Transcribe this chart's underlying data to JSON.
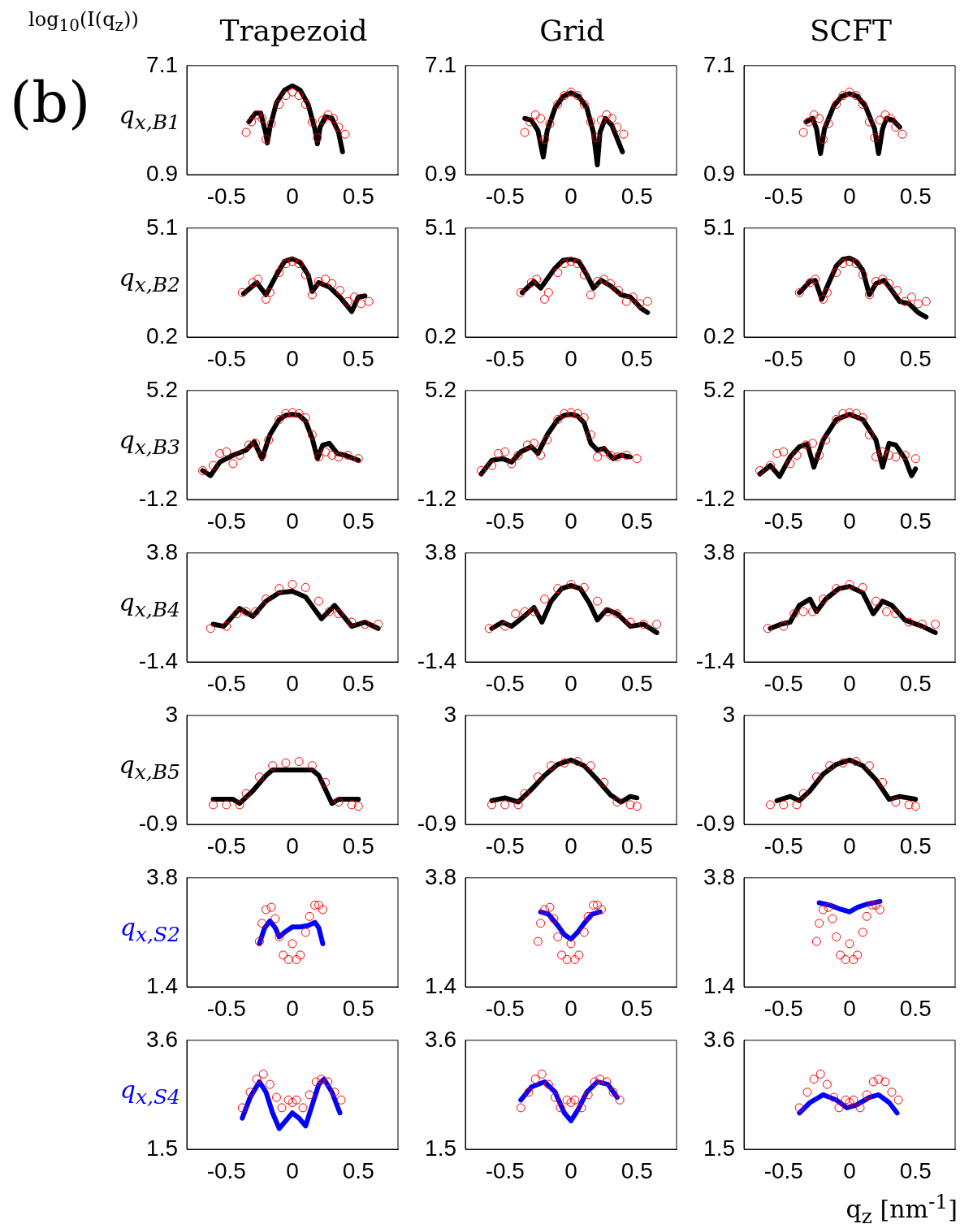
{
  "chart_data": [
    {
      "type": "scatter",
      "title": "Trapezoid",
      "ylabel": "q$_{x,B1}$",
      "annotations": [
        "log$_{10}$(I(q$_{z}$))",
        "(b)"
      ],
      "xlim": [
        -0.8,
        0.8
      ],
      "xticks": [
        -0.5,
        0,
        0.5
      ],
      "ylim": [
        0.9,
        7.1
      ],
      "yticks": [
        0.9,
        7.1
      ],
      "series": [
        {
          "color": "#ff0000",
          "marker": "circle",
          "x": [
            -0.35,
            -0.31,
            -0.27,
            -0.23,
            -0.2,
            -0.16,
            -0.1,
            -0.05,
            0,
            0.05,
            0.1,
            0.15,
            0.19,
            0.23,
            0.27,
            0.31,
            0.35,
            0.4
          ],
          "values": [
            3.3,
            3.9,
            4.3,
            4.1,
            2.9,
            3.8,
            4.9,
            5.4,
            5.6,
            5.4,
            4.9,
            3.9,
            3.0,
            4.0,
            4.3,
            4.1,
            3.6,
            3.2
          ]
        },
        {
          "type": "line",
          "color": "#000000",
          "marker": "none",
          "x": [
            -0.33,
            -0.28,
            -0.24,
            -0.2,
            -0.19,
            -0.17,
            -0.12,
            -0.06,
            0,
            0.06,
            0.12,
            0.17,
            0.19,
            0.21,
            0.25,
            0.3,
            0.35,
            0.38
          ],
          "values": [
            3.9,
            4.4,
            4.4,
            3.2,
            2.7,
            3.6,
            5.0,
            5.7,
            5.95,
            5.7,
            4.9,
            3.5,
            2.65,
            3.6,
            4.2,
            4.1,
            3.3,
            2.2
          ]
        }
      ]
    },
    {
      "type": "scatter",
      "title": "Grid",
      "xlim": [
        -0.8,
        0.8
      ],
      "xticks": [
        -0.5,
        0,
        0.5
      ],
      "ylim": [
        0.9,
        7.1
      ],
      "yticks": [
        0.9,
        7.1
      ],
      "series": [
        {
          "color": "#ff0000",
          "marker": "circle",
          "x": [
            -0.35,
            -0.31,
            -0.27,
            -0.23,
            -0.2,
            -0.16,
            -0.1,
            -0.05,
            0,
            0.05,
            0.1,
            0.15,
            0.19,
            0.23,
            0.27,
            0.31,
            0.35,
            0.4
          ],
          "values": [
            3.3,
            3.9,
            4.3,
            4.1,
            2.9,
            3.8,
            4.9,
            5.4,
            5.6,
            5.4,
            4.9,
            3.9,
            3.0,
            4.0,
            4.3,
            4.1,
            3.6,
            3.2
          ]
        },
        {
          "type": "line",
          "color": "#000000",
          "marker": "none",
          "x": [
            -0.35,
            -0.3,
            -0.25,
            -0.21,
            -0.18,
            -0.12,
            -0.06,
            0,
            0.06,
            0.12,
            0.17,
            0.2,
            0.22,
            0.26,
            0.31,
            0.39
          ],
          "values": [
            4.1,
            4.0,
            3.4,
            1.9,
            3.4,
            4.7,
            5.35,
            5.55,
            5.35,
            4.7,
            3.3,
            1.45,
            3.3,
            4.1,
            3.7,
            2.2
          ]
        }
      ]
    },
    {
      "type": "scatter",
      "title": "SCFT",
      "xlim": [
        -0.8,
        0.8
      ],
      "xticks": [
        -0.5,
        0,
        0.5
      ],
      "ylim": [
        0.9,
        7.1
      ],
      "yticks": [
        0.9,
        7.1
      ],
      "series": [
        {
          "color": "#ff0000",
          "marker": "circle",
          "x": [
            -0.35,
            -0.31,
            -0.27,
            -0.23,
            -0.2,
            -0.16,
            -0.1,
            -0.05,
            0,
            0.05,
            0.1,
            0.15,
            0.19,
            0.23,
            0.27,
            0.31,
            0.35,
            0.4
          ],
          "values": [
            3.3,
            3.9,
            4.3,
            4.1,
            2.9,
            3.8,
            4.9,
            5.4,
            5.6,
            5.4,
            4.9,
            3.9,
            3.0,
            4.0,
            4.3,
            4.1,
            3.6,
            3.2
          ]
        },
        {
          "type": "line",
          "color": "#000000",
          "marker": "none",
          "x": [
            -0.33,
            -0.28,
            -0.25,
            -0.22,
            -0.19,
            -0.12,
            -0.06,
            0,
            0.06,
            0.12,
            0.19,
            0.22,
            0.25,
            0.28,
            0.33,
            0.38
          ],
          "values": [
            3.9,
            4.1,
            3.5,
            2.1,
            3.5,
            4.8,
            5.35,
            5.5,
            5.35,
            4.8,
            3.5,
            2.1,
            3.5,
            4.1,
            4.0,
            3.6
          ]
        }
      ]
    },
    {
      "type": "scatter",
      "ylabel": "q$_{x,B2}$",
      "xlim": [
        -0.8,
        0.8
      ],
      "xticks": [
        -0.5,
        0,
        0.5
      ],
      "ylim": [
        0.2,
        5.1
      ],
      "yticks": [
        0.2,
        5.1
      ],
      "series": [
        {
          "color": "#ff0000",
          "marker": "circle",
          "x": [
            -0.38,
            -0.3,
            -0.26,
            -0.2,
            -0.17,
            -0.1,
            -0.05,
            0,
            0.05,
            0.1,
            0.15,
            0.2,
            0.25,
            0.3,
            0.36,
            0.42,
            0.47,
            0.52,
            0.58
          ],
          "values": [
            2.2,
            2.65,
            2.8,
            1.9,
            2.2,
            3.1,
            3.5,
            3.6,
            3.5,
            3.0,
            2.1,
            2.7,
            2.8,
            2.6,
            2.3,
            1.8,
            2.0,
            1.7,
            1.8
          ]
        },
        {
          "type": "line",
          "color": "#000000",
          "marker": "none",
          "x": [
            -0.37,
            -0.27,
            -0.2,
            -0.12,
            -0.06,
            0,
            0.06,
            0.12,
            0.15,
            0.2,
            0.28,
            0.36,
            0.45,
            0.5,
            0.55
          ],
          "values": [
            2.15,
            2.65,
            2.1,
            3.0,
            3.6,
            3.72,
            3.55,
            3.0,
            2.25,
            2.65,
            2.45,
            2.0,
            1.35,
            2.0,
            2.05
          ]
        }
      ]
    },
    {
      "type": "scatter",
      "xlim": [
        -0.8,
        0.8
      ],
      "xticks": [
        -0.5,
        0,
        0.5
      ],
      "ylim": [
        0.2,
        5.1
      ],
      "yticks": [
        0.2,
        5.1
      ],
      "series": [
        {
          "color": "#ff0000",
          "marker": "circle",
          "x": [
            -0.38,
            -0.3,
            -0.26,
            -0.2,
            -0.17,
            -0.1,
            -0.05,
            0,
            0.05,
            0.1,
            0.15,
            0.2,
            0.25,
            0.3,
            0.36,
            0.42,
            0.47,
            0.52,
            0.58
          ],
          "values": [
            2.2,
            2.65,
            2.8,
            1.9,
            2.2,
            3.1,
            3.5,
            3.6,
            3.5,
            3.0,
            2.1,
            2.7,
            2.8,
            2.6,
            2.3,
            1.8,
            2.0,
            1.7,
            1.8
          ]
        },
        {
          "type": "line",
          "color": "#000000",
          "marker": "none",
          "x": [
            -0.37,
            -0.28,
            -0.23,
            -0.12,
            -0.06,
            0,
            0.06,
            0.12,
            0.17,
            0.23,
            0.3,
            0.38,
            0.45,
            0.53,
            0.58
          ],
          "values": [
            2.2,
            2.7,
            2.4,
            3.3,
            3.65,
            3.7,
            3.6,
            3.0,
            2.4,
            2.75,
            2.5,
            2.1,
            2.0,
            1.5,
            1.3
          ]
        }
      ]
    },
    {
      "type": "scatter",
      "xlim": [
        -0.8,
        0.8
      ],
      "xticks": [
        -0.5,
        0,
        0.5
      ],
      "ylim": [
        0.2,
        5.1
      ],
      "yticks": [
        0.2,
        5.1
      ],
      "series": [
        {
          "color": "#ff0000",
          "marker": "circle",
          "x": [
            -0.38,
            -0.3,
            -0.26,
            -0.2,
            -0.17,
            -0.1,
            -0.05,
            0,
            0.05,
            0.1,
            0.15,
            0.2,
            0.25,
            0.3,
            0.36,
            0.42,
            0.47,
            0.52,
            0.58
          ],
          "values": [
            2.2,
            2.65,
            2.8,
            1.9,
            2.2,
            3.1,
            3.5,
            3.6,
            3.5,
            3.0,
            2.1,
            2.7,
            2.8,
            2.6,
            2.3,
            1.8,
            2.0,
            1.7,
            1.8
          ]
        },
        {
          "type": "line",
          "color": "#000000",
          "marker": "none",
          "x": [
            -0.38,
            -0.3,
            -0.26,
            -0.21,
            -0.16,
            -0.1,
            -0.05,
            0,
            0.05,
            0.1,
            0.15,
            0.2,
            0.26,
            0.32,
            0.38,
            0.45,
            0.52,
            0.58
          ],
          "values": [
            2.2,
            2.7,
            2.75,
            1.9,
            2.6,
            3.4,
            3.7,
            3.75,
            3.6,
            3.2,
            2.1,
            2.6,
            2.75,
            2.3,
            1.8,
            1.7,
            1.3,
            1.1
          ]
        }
      ]
    },
    {
      "type": "scatter",
      "ylabel": "q$_{x,B3}$",
      "xlim": [
        -0.8,
        0.8
      ],
      "xticks": [
        -0.5,
        0,
        0.5
      ],
      "ylim": [
        -1.2,
        5.2
      ],
      "yticks": [
        -1.2,
        5.2
      ],
      "series": [
        {
          "color": "#ff0000",
          "marker": "circle",
          "x": [
            -0.68,
            -0.6,
            -0.55,
            -0.5,
            -0.45,
            -0.4,
            -0.33,
            -0.28,
            -0.23,
            -0.18,
            -0.1,
            -0.05,
            0,
            0.05,
            0.1,
            0.15,
            0.2,
            0.25,
            0.3,
            0.35,
            0.42,
            0.5
          ],
          "values": [
            0.5,
            0.8,
            1.5,
            1.6,
            0.9,
            1.4,
            2.0,
            2.1,
            1.4,
            2.3,
            3.5,
            3.85,
            3.9,
            3.85,
            3.6,
            2.6,
            1.3,
            1.6,
            1.4,
            1.3,
            1.4,
            1.2
          ]
        },
        {
          "type": "line",
          "color": "#000000",
          "marker": "none",
          "x": [
            -0.68,
            -0.62,
            -0.55,
            -0.45,
            -0.35,
            -0.29,
            -0.23,
            -0.17,
            -0.1,
            -0.05,
            0,
            0.05,
            0.1,
            0.15,
            0.19,
            0.23,
            0.28,
            0.34,
            0.4,
            0.5
          ],
          "values": [
            0.5,
            0.2,
            1.0,
            1.4,
            1.7,
            2.2,
            1.2,
            2.6,
            3.5,
            3.75,
            3.8,
            3.75,
            3.4,
            2.4,
            1.2,
            2.0,
            2.1,
            1.5,
            1.4,
            1.1
          ]
        }
      ]
    },
    {
      "type": "scatter",
      "xlim": [
        -0.8,
        0.8
      ],
      "xticks": [
        -0.5,
        0,
        0.5
      ],
      "ylim": [
        -1.2,
        5.2
      ],
      "yticks": [
        -1.2,
        5.2
      ],
      "series": [
        {
          "color": "#ff0000",
          "marker": "circle",
          "x": [
            -0.68,
            -0.6,
            -0.55,
            -0.5,
            -0.45,
            -0.4,
            -0.33,
            -0.28,
            -0.23,
            -0.18,
            -0.1,
            -0.05,
            0,
            0.05,
            0.1,
            0.15,
            0.2,
            0.25,
            0.3,
            0.35,
            0.42,
            0.5
          ],
          "values": [
            0.5,
            0.8,
            1.5,
            1.6,
            0.9,
            1.4,
            2.0,
            2.1,
            1.4,
            2.3,
            3.5,
            3.85,
            3.9,
            3.85,
            3.6,
            2.6,
            1.3,
            1.6,
            1.4,
            1.3,
            1.4,
            1.2
          ]
        },
        {
          "type": "line",
          "color": "#000000",
          "marker": "none",
          "x": [
            -0.68,
            -0.6,
            -0.52,
            -0.45,
            -0.38,
            -0.3,
            -0.25,
            -0.18,
            -0.1,
            -0.05,
            0,
            0.05,
            0.1,
            0.15,
            0.2,
            0.25,
            0.32,
            0.38,
            0.45
          ],
          "values": [
            0.3,
            1.1,
            1.2,
            1.0,
            1.6,
            1.9,
            1.5,
            2.6,
            3.5,
            3.75,
            3.8,
            3.7,
            3.3,
            2.1,
            1.7,
            1.8,
            1.2,
            1.4,
            1.3
          ]
        }
      ]
    },
    {
      "type": "scatter",
      "xlim": [
        -0.8,
        0.8
      ],
      "xticks": [
        -0.5,
        0,
        0.5
      ],
      "ylim": [
        -1.2,
        5.2
      ],
      "yticks": [
        -1.2,
        5.2
      ],
      "series": [
        {
          "color": "#ff0000",
          "marker": "circle",
          "x": [
            -0.68,
            -0.6,
            -0.55,
            -0.5,
            -0.45,
            -0.4,
            -0.33,
            -0.28,
            -0.23,
            -0.18,
            -0.1,
            -0.05,
            0,
            0.05,
            0.1,
            0.15,
            0.2,
            0.25,
            0.3,
            0.35,
            0.42,
            0.5
          ],
          "values": [
            0.5,
            0.8,
            1.5,
            1.6,
            0.9,
            1.4,
            2.0,
            2.1,
            1.4,
            2.3,
            3.5,
            3.85,
            3.9,
            3.85,
            3.6,
            2.6,
            1.3,
            1.6,
            1.4,
            1.3,
            1.4,
            1.2
          ]
        },
        {
          "type": "line",
          "color": "#000000",
          "marker": "none",
          "x": [
            -0.68,
            -0.6,
            -0.53,
            -0.45,
            -0.38,
            -0.32,
            -0.27,
            -0.2,
            -0.1,
            0,
            0.1,
            0.2,
            0.25,
            0.3,
            0.35,
            0.42,
            0.47,
            0.5
          ],
          "values": [
            0.3,
            0.8,
            0.15,
            1.3,
            1.9,
            2.05,
            0.7,
            2.3,
            3.5,
            3.8,
            3.5,
            2.3,
            0.7,
            2.1,
            2.0,
            1.2,
            0.2,
            0.6
          ]
        }
      ]
    },
    {
      "type": "scatter",
      "ylabel": "q$_{x,B4}$",
      "xlim": [
        -0.8,
        0.8
      ],
      "xticks": [
        -0.5,
        0,
        0.5
      ],
      "ylim": [
        -1.4,
        3.8
      ],
      "yticks": [
        -1.4,
        3.8
      ],
      "series": [
        {
          "color": "#ff0000",
          "marker": "circle",
          "x": [
            -0.62,
            -0.5,
            -0.42,
            -0.35,
            -0.28,
            -0.2,
            -0.1,
            0,
            0.1,
            0.2,
            0.28,
            0.35,
            0.45,
            0.55,
            0.65
          ],
          "values": [
            0.2,
            0.3,
            0.9,
            1.0,
            1.0,
            1.6,
            2.1,
            2.3,
            2.15,
            1.5,
            1.0,
            0.9,
            0.5,
            0.4,
            0.4
          ]
        },
        {
          "type": "line",
          "color": "#000000",
          "marker": "none",
          "x": [
            -0.6,
            -0.52,
            -0.4,
            -0.3,
            -0.2,
            -0.1,
            0,
            0.1,
            0.22,
            0.32,
            0.45,
            0.5,
            0.55,
            0.65
          ],
          "values": [
            0.4,
            0.3,
            1.15,
            0.77,
            1.5,
            1.9,
            1.97,
            1.7,
            0.66,
            1.3,
            0.3,
            0.4,
            0.5,
            0.2
          ]
        }
      ]
    },
    {
      "type": "scatter",
      "xlim": [
        -0.8,
        0.8
      ],
      "xticks": [
        -0.5,
        0,
        0.5
      ],
      "ylim": [
        -1.4,
        3.8
      ],
      "yticks": [
        -1.4,
        3.8
      ],
      "series": [
        {
          "color": "#ff0000",
          "marker": "circle",
          "x": [
            -0.62,
            -0.5,
            -0.42,
            -0.35,
            -0.28,
            -0.2,
            -0.1,
            0,
            0.1,
            0.2,
            0.28,
            0.35,
            0.45,
            0.55,
            0.65
          ],
          "values": [
            0.2,
            0.3,
            0.9,
            1.0,
            1.0,
            1.6,
            2.1,
            2.3,
            2.15,
            1.5,
            1.0,
            0.9,
            0.5,
            0.4,
            0.4
          ]
        },
        {
          "type": "line",
          "color": "#000000",
          "marker": "none",
          "x": [
            -0.6,
            -0.52,
            -0.45,
            -0.35,
            -0.28,
            -0.22,
            -0.15,
            -0.07,
            0,
            0.07,
            0.14,
            0.2,
            0.27,
            0.35,
            0.45,
            0.55,
            0.65
          ],
          "values": [
            0.2,
            0.5,
            0.3,
            0.8,
            1.2,
            0.5,
            1.5,
            2.1,
            2.25,
            2.1,
            1.4,
            0.6,
            1.1,
            0.9,
            0.3,
            0.4,
            0.0
          ]
        }
      ]
    },
    {
      "type": "scatter",
      "xlim": [
        -0.8,
        0.8
      ],
      "xticks": [
        -0.5,
        0,
        0.5
      ],
      "ylim": [
        -1.4,
        3.8
      ],
      "yticks": [
        -1.4,
        3.8
      ],
      "series": [
        {
          "color": "#ff0000",
          "marker": "circle",
          "x": [
            -0.62,
            -0.5,
            -0.42,
            -0.35,
            -0.28,
            -0.2,
            -0.1,
            0,
            0.1,
            0.2,
            0.28,
            0.35,
            0.45,
            0.55,
            0.65
          ],
          "values": [
            0.2,
            0.3,
            0.9,
            1.0,
            1.0,
            1.6,
            2.1,
            2.3,
            2.15,
            1.5,
            1.0,
            0.9,
            0.5,
            0.4,
            0.4
          ]
        },
        {
          "type": "line",
          "color": "#000000",
          "marker": "none",
          "x": [
            -0.6,
            -0.52,
            -0.45,
            -0.38,
            -0.3,
            -0.25,
            -0.18,
            -0.08,
            0,
            0.1,
            0.18,
            0.25,
            0.32,
            0.42,
            0.55,
            0.65
          ],
          "values": [
            0.2,
            0.4,
            0.5,
            1.3,
            1.6,
            1.0,
            1.6,
            2.1,
            2.2,
            1.9,
            0.9,
            1.5,
            1.3,
            0.6,
            0.3,
            0.0
          ]
        }
      ]
    },
    {
      "type": "scatter",
      "ylabel": "q$_{x,B5}$",
      "xlim": [
        -0.8,
        0.8
      ],
      "xticks": [
        -0.5,
        0,
        0.5
      ],
      "ylim": [
        -0.9,
        3
      ],
      "yticks": [
        -0.9,
        3
      ],
      "series": [
        {
          "color": "#ff0000",
          "marker": "circle",
          "x": [
            -0.6,
            -0.5,
            -0.4,
            -0.35,
            -0.25,
            -0.15,
            -0.05,
            0.05,
            0.15,
            0.25,
            0.35,
            0.45,
            0.5
          ],
          "values": [
            -0.2,
            -0.2,
            -0.2,
            0.2,
            0.8,
            1.2,
            1.3,
            1.35,
            1.2,
            0.6,
            -0.1,
            -0.2,
            -0.25
          ]
        },
        {
          "type": "line",
          "color": "#000000",
          "marker": "none",
          "x": [
            -0.6,
            -0.45,
            -0.4,
            -0.3,
            -0.2,
            -0.15,
            0.15,
            0.2,
            0.3,
            0.35,
            0.5
          ],
          "values": [
            0,
            0,
            -0.15,
            0.3,
            0.85,
            1.05,
            1.05,
            0.85,
            -0.15,
            0,
            0
          ]
        }
      ]
    },
    {
      "type": "scatter",
      "xlim": [
        -0.8,
        0.8
      ],
      "xticks": [
        -0.5,
        0,
        0.5
      ],
      "ylim": [
        -0.9,
        3
      ],
      "yticks": [
        -0.9,
        3
      ],
      "series": [
        {
          "color": "#ff0000",
          "marker": "circle",
          "x": [
            -0.6,
            -0.5,
            -0.4,
            -0.35,
            -0.25,
            -0.15,
            -0.05,
            0.05,
            0.15,
            0.25,
            0.35,
            0.45,
            0.5
          ],
          "values": [
            -0.2,
            -0.2,
            -0.2,
            0.2,
            0.8,
            1.2,
            1.3,
            1.35,
            1.2,
            0.6,
            -0.1,
            -0.2,
            -0.25
          ]
        },
        {
          "type": "line",
          "color": "#000000",
          "marker": "none",
          "x": [
            -0.6,
            -0.5,
            -0.4,
            -0.3,
            -0.2,
            -0.1,
            0,
            0.1,
            0.2,
            0.3,
            0.38,
            0.45,
            0.5
          ],
          "values": [
            -0.05,
            0.05,
            -0.1,
            0.35,
            0.85,
            1.25,
            1.4,
            1.2,
            0.7,
            0.15,
            -0.1,
            0.1,
            0.05
          ]
        }
      ]
    },
    {
      "type": "scatter",
      "xlim": [
        -0.8,
        0.8
      ],
      "xticks": [
        -0.5,
        0,
        0.5
      ],
      "ylim": [
        -0.9,
        3
      ],
      "yticks": [
        -0.9,
        3
      ],
      "series": [
        {
          "color": "#ff0000",
          "marker": "circle",
          "x": [
            -0.6,
            -0.5,
            -0.4,
            -0.35,
            -0.25,
            -0.15,
            -0.05,
            0.05,
            0.15,
            0.25,
            0.35,
            0.45,
            0.5
          ],
          "values": [
            -0.2,
            -0.2,
            -0.2,
            0.2,
            0.8,
            1.2,
            1.3,
            1.35,
            1.2,
            0.6,
            -0.1,
            -0.2,
            -0.25
          ]
        },
        {
          "type": "line",
          "color": "#000000",
          "marker": "none",
          "x": [
            -0.55,
            -0.45,
            -0.38,
            -0.3,
            -0.2,
            -0.1,
            0,
            0.1,
            0.2,
            0.3,
            0.38,
            0.5
          ],
          "values": [
            -0.05,
            0.1,
            -0.05,
            0.3,
            0.9,
            1.25,
            1.4,
            1.2,
            0.7,
            0.0,
            0.1,
            0.0
          ]
        }
      ]
    },
    {
      "type": "scatter",
      "ylabel": "q$_{x,S2}$",
      "xlim": [
        -0.8,
        0.8
      ],
      "xticks": [
        -0.5,
        0,
        0.5
      ],
      "ylim": [
        1.4,
        3.8
      ],
      "yticks": [
        1.4,
        3.8
      ],
      "series": [
        {
          "color": "#ff0000",
          "marker": "circle",
          "x": [
            -0.25,
            -0.23,
            -0.2,
            -0.16,
            -0.13,
            -0.1,
            -0.07,
            -0.03,
            0,
            0.03,
            0.06,
            0.1,
            0.13,
            0.17,
            0.2,
            0.23
          ],
          "values": [
            2.4,
            2.8,
            3.1,
            3.15,
            2.9,
            2.5,
            2.1,
            2.0,
            2.35,
            2.0,
            2.1,
            2.6,
            2.95,
            3.2,
            3.2,
            3.1
          ]
        },
        {
          "type": "line",
          "color": "#0000ff",
          "marker": "none",
          "x": [
            -0.25,
            -0.21,
            -0.17,
            -0.13,
            -0.1,
            -0.06,
            0,
            0.06,
            0.12,
            0.17,
            0.2,
            0.23
          ],
          "values": [
            2.35,
            2.7,
            2.85,
            2.7,
            2.5,
            2.6,
            2.72,
            2.72,
            2.75,
            2.82,
            2.7,
            2.35
          ]
        }
      ]
    },
    {
      "type": "scatter",
      "xlim": [
        -0.8,
        0.8
      ],
      "xticks": [
        -0.5,
        0,
        0.5
      ],
      "ylim": [
        1.4,
        3.8
      ],
      "yticks": [
        1.4,
        3.8
      ],
      "series": [
        {
          "color": "#ff0000",
          "marker": "circle",
          "x": [
            -0.25,
            -0.23,
            -0.2,
            -0.16,
            -0.13,
            -0.1,
            -0.07,
            -0.03,
            0,
            0.03,
            0.06,
            0.1,
            0.13,
            0.17,
            0.2,
            0.23
          ],
          "values": [
            2.4,
            2.8,
            3.1,
            3.15,
            2.9,
            2.5,
            2.1,
            2.0,
            2.35,
            2.0,
            2.1,
            2.6,
            2.95,
            3.2,
            3.2,
            3.1
          ]
        },
        {
          "type": "line",
          "color": "#0000ff",
          "marker": "none",
          "x": [
            -0.23,
            -0.17,
            -0.1,
            -0.05,
            0,
            0.05,
            0.1,
            0.16,
            0.22
          ],
          "values": [
            3.05,
            3.0,
            2.75,
            2.55,
            2.45,
            2.6,
            2.8,
            3.0,
            3.05
          ]
        }
      ]
    },
    {
      "type": "scatter",
      "xlim": [
        -0.8,
        0.8
      ],
      "xticks": [
        -0.5,
        0,
        0.5
      ],
      "ylim": [
        1.4,
        3.8
      ],
      "yticks": [
        1.4,
        3.8
      ],
      "series": [
        {
          "color": "#ff0000",
          "marker": "circle",
          "x": [
            -0.25,
            -0.23,
            -0.2,
            -0.16,
            -0.13,
            -0.1,
            -0.07,
            -0.03,
            0,
            0.03,
            0.06,
            0.1,
            0.13,
            0.17,
            0.2,
            0.23
          ],
          "values": [
            2.4,
            2.8,
            3.1,
            3.15,
            2.9,
            2.5,
            2.1,
            2.0,
            2.35,
            2.0,
            2.1,
            2.6,
            2.95,
            3.2,
            3.2,
            3.1
          ]
        },
        {
          "type": "line",
          "color": "#0000ff",
          "marker": "none",
          "x": [
            -0.23,
            -0.15,
            -0.08,
            0,
            0.06,
            0.13,
            0.23
          ],
          "values": [
            3.25,
            3.2,
            3.12,
            3.05,
            3.15,
            3.22,
            3.28
          ]
        }
      ]
    },
    {
      "type": "scatter",
      "ylabel": "q$_{x,S4}$",
      "xlim": [
        -0.8,
        0.8
      ],
      "xticks": [
        -0.5,
        0,
        0.5
      ],
      "ylim": [
        1.5,
        3.6
      ],
      "yticks": [
        1.5,
        3.6
      ],
      "series": [
        {
          "color": "#ff0000",
          "marker": "circle",
          "x": [
            -0.38,
            -0.32,
            -0.27,
            -0.22,
            -0.17,
            -0.12,
            -0.08,
            -0.03,
            0,
            0.03,
            0.08,
            0.13,
            0.18,
            0.22,
            0.27,
            0.32,
            0.37
          ],
          "values": [
            2.3,
            2.6,
            2.85,
            2.95,
            2.75,
            2.5,
            2.3,
            2.45,
            2.4,
            2.45,
            2.3,
            2.55,
            2.8,
            2.85,
            2.8,
            2.6,
            2.45
          ]
        },
        {
          "type": "line",
          "color": "#0000ff",
          "marker": "none",
          "x": [
            -0.38,
            -0.32,
            -0.25,
            -0.2,
            -0.15,
            -0.1,
            -0.05,
            0,
            0.05,
            0.1,
            0.15,
            0.2,
            0.24,
            0.3,
            0.36
          ],
          "values": [
            2.1,
            2.5,
            2.8,
            2.6,
            2.2,
            1.9,
            2.05,
            2.2,
            2.1,
            1.95,
            2.35,
            2.75,
            2.85,
            2.6,
            2.2
          ]
        }
      ]
    },
    {
      "type": "scatter",
      "xlim": [
        -0.8,
        0.8
      ],
      "xticks": [
        -0.5,
        0,
        0.5
      ],
      "ylim": [
        1.5,
        3.6
      ],
      "yticks": [
        1.5,
        3.6
      ],
      "series": [
        {
          "color": "#ff0000",
          "marker": "circle",
          "x": [
            -0.38,
            -0.32,
            -0.27,
            -0.22,
            -0.17,
            -0.12,
            -0.08,
            -0.03,
            0,
            0.03,
            0.08,
            0.13,
            0.18,
            0.22,
            0.27,
            0.32,
            0.37
          ],
          "values": [
            2.3,
            2.6,
            2.85,
            2.95,
            2.75,
            2.5,
            2.3,
            2.45,
            2.4,
            2.45,
            2.3,
            2.55,
            2.8,
            2.85,
            2.8,
            2.6,
            2.45
          ]
        },
        {
          "type": "line",
          "color": "#0000ff",
          "marker": "none",
          "x": [
            -0.38,
            -0.3,
            -0.2,
            -0.12,
            -0.05,
            0,
            0.05,
            0.12,
            0.2,
            0.28,
            0.35
          ],
          "values": [
            2.45,
            2.7,
            2.8,
            2.6,
            2.2,
            2.05,
            2.25,
            2.6,
            2.8,
            2.75,
            2.5
          ]
        }
      ]
    },
    {
      "type": "scatter",
      "xlabel": "q$_{z}$ [nm$^{-1}$]",
      "xlim": [
        -0.8,
        0.8
      ],
      "xticks": [
        -0.5,
        0,
        0.5
      ],
      "ylim": [
        1.5,
        3.6
      ],
      "yticks": [
        1.5,
        3.6
      ],
      "series": [
        {
          "color": "#ff0000",
          "marker": "circle",
          "x": [
            -0.38,
            -0.32,
            -0.27,
            -0.22,
            -0.17,
            -0.12,
            -0.08,
            -0.03,
            0,
            0.03,
            0.08,
            0.13,
            0.18,
            0.22,
            0.27,
            0.32,
            0.37
          ],
          "values": [
            2.3,
            2.6,
            2.85,
            2.95,
            2.75,
            2.5,
            2.3,
            2.45,
            2.4,
            2.45,
            2.3,
            2.55,
            2.8,
            2.85,
            2.8,
            2.6,
            2.45
          ]
        },
        {
          "type": "line",
          "color": "#0000ff",
          "marker": "none",
          "x": [
            -0.38,
            -0.3,
            -0.2,
            -0.1,
            -0.02,
            0.05,
            0.15,
            0.22,
            0.3,
            0.36
          ],
          "values": [
            2.2,
            2.4,
            2.55,
            2.45,
            2.3,
            2.35,
            2.5,
            2.55,
            2.4,
            2.2
          ]
        }
      ]
    }
  ]
}
